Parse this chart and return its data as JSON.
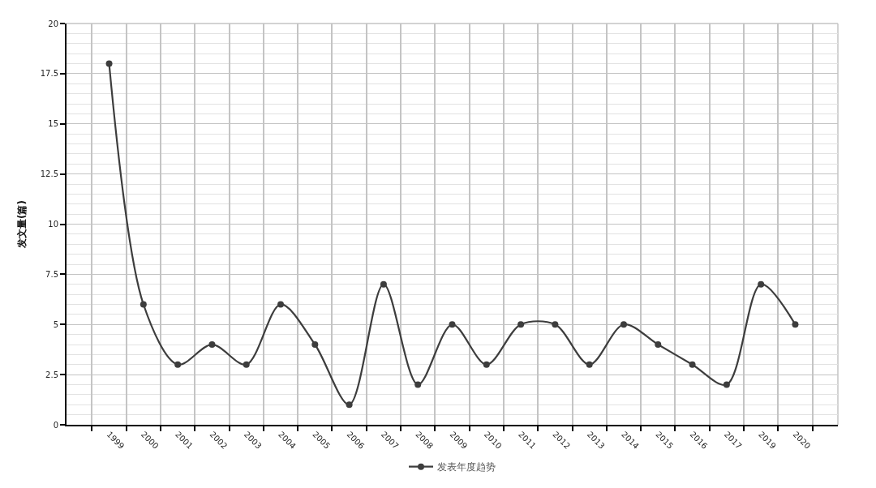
{
  "chart_data": {
    "type": "line",
    "ylabel": "发文量(篇)",
    "categories": [
      "1999",
      "2000",
      "2001",
      "2002",
      "2003",
      "2004",
      "2005",
      "2006",
      "2007",
      "2008",
      "2009",
      "2010",
      "2011",
      "2012",
      "2013",
      "2014",
      "2015",
      "2016",
      "2017",
      "2019",
      "2020"
    ],
    "series": [
      {
        "name": "发表年度趋势",
        "color": "#3d3d3d",
        "values": [
          18,
          6,
          3,
          4,
          3,
          6,
          4,
          1,
          7,
          2,
          5,
          3,
          5,
          5,
          3,
          5,
          4,
          3,
          2,
          7,
          5
        ]
      }
    ],
    "ylim": [
      0,
      20
    ],
    "yticks": [
      0,
      2.5,
      5,
      7.5,
      10,
      12.5,
      15,
      17.5,
      20
    ],
    "grid": true,
    "legend": "bottom",
    "marker": "circle",
    "line_style": "solid"
  }
}
